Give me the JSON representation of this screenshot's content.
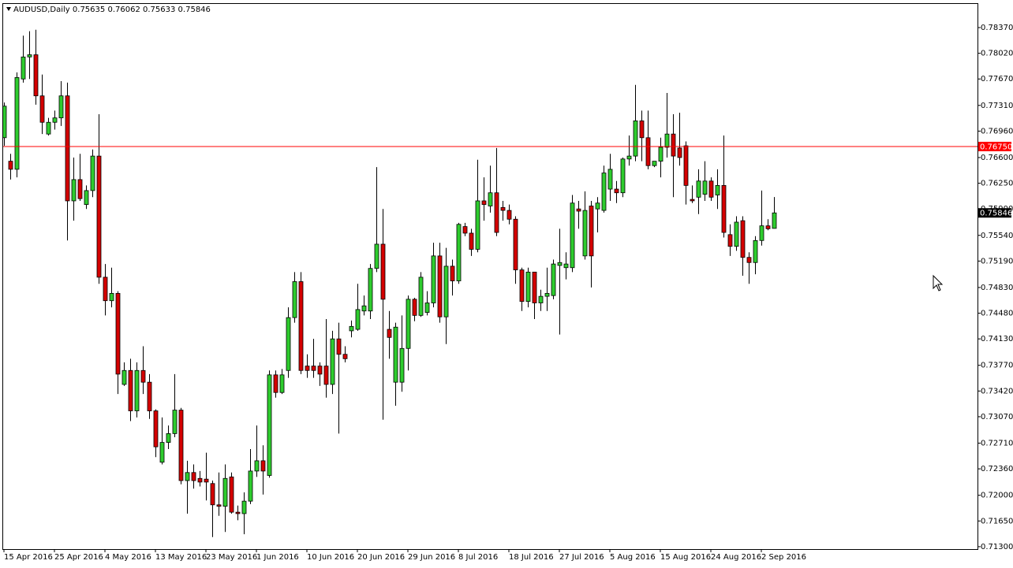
{
  "chart_data": {
    "type": "candlestick",
    "title": "AUDUSD,Daily",
    "up_color": "#2ecc2e",
    "down_color": "#d40000",
    "outline_color": "#000000",
    "categories": [
      "15 Apr 2016",
      null,
      null,
      null,
      null,
      null,
      null,
      null,
      "25 Apr 2016",
      null,
      null,
      null,
      null,
      null,
      null,
      null,
      "4 May 2016",
      null,
      null,
      null,
      null,
      null,
      null,
      null,
      "13 May 2016",
      null,
      null,
      null,
      null,
      null,
      null,
      null,
      "23 May 2016",
      null,
      null,
      null,
      null,
      null,
      null,
      null,
      "1 Jun 2016",
      null,
      null,
      null,
      null,
      null,
      null,
      null,
      "10 Jun 2016",
      null,
      null,
      null,
      null,
      null,
      null,
      null,
      "20 Jun 2016",
      null,
      null,
      null,
      null,
      null,
      null,
      null,
      "29 Jun 2016",
      null,
      null,
      null,
      null,
      null,
      null,
      null,
      "8 Jul 2016",
      null,
      null,
      null,
      null,
      null,
      null,
      null,
      "18 Jul 2016",
      null,
      null,
      null,
      null,
      null,
      null,
      null,
      "27 Jul 2016",
      null,
      null,
      null,
      null,
      null,
      null,
      null,
      "5 Aug 2016",
      null,
      null,
      null,
      null,
      null,
      null,
      null,
      "15 Aug 2016",
      null,
      null,
      null,
      null,
      null,
      null,
      null,
      "24 Aug 2016",
      null,
      null,
      null,
      null,
      null,
      null,
      null,
      "2 Sep 2016",
      null,
      null
    ],
    "open": [
      0.7687,
      0.7655,
      0.7644,
      0.7767,
      0.7797,
      0.78,
      0.7744,
      0.7692,
      0.7708,
      0.7714,
      0.7744,
      0.7601,
      0.763,
      0.7596,
      0.7615,
      0.7662,
      0.7497,
      0.7465,
      0.7475,
      0.7351,
      0.737,
      0.7315,
      0.737,
      0.7354,
      0.7315,
      0.7245,
      0.7272,
      0.7284,
      0.7316,
      0.722,
      0.7231,
      0.7223,
      0.7222,
      0.7216,
      0.7187,
      0.7185,
      0.7225,
      0.7177,
      0.7175,
      0.7192,
      0.7233,
      0.7247,
      0.7227,
      0.7364,
      0.734,
      0.737,
      0.7442,
      0.7491,
      0.7376,
      0.7376,
      0.7376,
      0.7376,
      0.7351,
      0.7413,
      0.7392,
      0.7424,
      0.7426,
      0.7451,
      0.7451,
      0.7509,
      0.7542,
      0.7426,
      0.7354,
      0.7354,
      0.74,
      0.7467,
      0.7445,
      0.7449,
      0.7462,
      0.7526,
      0.7443,
      0.7512,
      0.7492,
      0.7566,
      0.7557,
      0.7535,
      0.7601,
      0.7594,
      0.7612,
      0.7592,
      0.7588,
      0.7576,
      0.7507,
      0.7464,
      0.7504,
      0.7462,
      0.7471,
      0.7472,
      0.7513,
      0.751,
      0.751,
      0.759,
      0.7526,
      0.7594,
      0.759,
      0.7588,
      0.7617,
      0.7617,
      0.7612,
      0.7658,
      0.7662,
      0.771,
      0.7687,
      0.7649,
      0.7655,
      0.7674,
      0.7692,
      0.7673,
      0.7676,
      0.7603,
      0.7606,
      0.761,
      0.7628,
      0.7609,
      0.7622,
      0.7555,
      0.7539,
      0.7574,
      0.7524,
      0.7517,
      0.7547,
      0.7567,
      0.75635
    ],
    "high": [
      0.7735,
      0.7665,
      0.7776,
      0.7826,
      0.7832,
      0.7834,
      0.7773,
      0.7714,
      0.7724,
      0.7764,
      0.7762,
      0.766,
      0.7665,
      0.7622,
      0.7671,
      0.7719,
      0.7515,
      0.751,
      0.7478,
      0.7381,
      0.7386,
      0.7381,
      0.7403,
      0.7365,
      0.7317,
      0.7306,
      0.7295,
      0.7365,
      0.7319,
      0.7247,
      0.7242,
      0.7233,
      0.7258,
      0.722,
      0.7231,
      0.7242,
      0.7231,
      0.7186,
      0.7204,
      0.7263,
      0.7295,
      0.7268,
      0.737,
      0.737,
      0.7372,
      0.7456,
      0.7504,
      0.7504,
      0.7392,
      0.7413,
      0.7381,
      0.744,
      0.7424,
      0.7435,
      0.7403,
      0.7438,
      0.7488,
      0.7472,
      0.7515,
      0.7647,
      0.759,
      0.7451,
      0.7435,
      0.7445,
      0.7472,
      0.7469,
      0.7504,
      0.7478,
      0.7544,
      0.7544,
      0.7537,
      0.7521,
      0.7571,
      0.7571,
      0.7563,
      0.7657,
      0.7633,
      0.7649,
      0.7673,
      0.7601,
      0.7596,
      0.758,
      0.751,
      0.751,
      0.7504,
      0.748,
      0.751,
      0.7521,
      0.7563,
      0.7531,
      0.7609,
      0.7601,
      0.7614,
      0.7601,
      0.7606,
      0.7649,
      0.7665,
      0.7628,
      0.766,
      0.769,
      0.7759,
      0.7724,
      0.7724,
      0.7655,
      0.7687,
      0.7748,
      0.7719,
      0.7721,
      0.7682,
      0.7622,
      0.7644,
      0.7655,
      0.7633,
      0.7644,
      0.769,
      0.7569,
      0.758,
      0.758,
      0.7531,
      0.7553,
      0.7615,
      0.7576,
      0.76062
    ],
    "low": [
      0.7676,
      0.763,
      0.7633,
      0.7762,
      0.7767,
      0.7732,
      0.7692,
      0.769,
      0.7698,
      0.7703,
      0.7547,
      0.7574,
      0.7601,
      0.759,
      0.7606,
      0.7488,
      0.7445,
      0.7456,
      0.7338,
      0.7349,
      0.7301,
      0.7306,
      0.7338,
      0.7304,
      0.7252,
      0.7242,
      0.7263,
      0.7279,
      0.7215,
      0.7175,
      0.7209,
      0.7212,
      0.7193,
      0.7143,
      0.7172,
      0.715,
      0.7175,
      0.7166,
      0.7147,
      0.7188,
      0.7225,
      0.7201,
      0.7224,
      0.7333,
      0.7338,
      0.736,
      0.7435,
      0.7365,
      0.736,
      0.736,
      0.7349,
      0.7333,
      0.7338,
      0.7284,
      0.7381,
      0.7415,
      0.7424,
      0.7445,
      0.744,
      0.7504,
      0.7303,
      0.7386,
      0.7322,
      0.7341,
      0.737,
      0.7437,
      0.7443,
      0.7445,
      0.7456,
      0.7435,
      0.7406,
      0.7472,
      0.7488,
      0.7553,
      0.7526,
      0.7531,
      0.7574,
      0.7585,
      0.7553,
      0.7574,
      0.7569,
      0.7488,
      0.7451,
      0.7456,
      0.744,
      0.7451,
      0.7451,
      0.7467,
      0.7419,
      0.7494,
      0.7504,
      0.7563,
      0.7521,
      0.7483,
      0.7558,
      0.7585,
      0.7601,
      0.7598,
      0.7606,
      0.7649,
      0.7655,
      0.7655,
      0.7644,
      0.7647,
      0.7633,
      0.766,
      0.7606,
      0.7649,
      0.7596,
      0.7598,
      0.7583,
      0.7601,
      0.7601,
      0.759,
      0.7551,
      0.7526,
      0.7533,
      0.7499,
      0.7488,
      0.7501,
      0.754,
      0.7561,
      0.75633
    ],
    "close": [
      0.773,
      0.7644,
      0.7769,
      0.7797,
      0.78,
      0.7744,
      0.7708,
      0.7708,
      0.7714,
      0.7744,
      0.7601,
      0.763,
      0.7604,
      0.7615,
      0.7662,
      0.7497,
      0.7465,
      0.7475,
      0.7365,
      0.737,
      0.7315,
      0.737,
      0.7354,
      0.7315,
      0.7266,
      0.7272,
      0.7284,
      0.7316,
      0.722,
      0.7231,
      0.722,
      0.7218,
      0.7218,
      0.7187,
      0.7185,
      0.7223,
      0.7177,
      0.7175,
      0.7192,
      0.7233,
      0.7247,
      0.7233,
      0.7364,
      0.734,
      0.7364,
      0.7442,
      0.7491,
      0.737,
      0.737,
      0.737,
      0.7365,
      0.7351,
      0.7413,
      0.7392,
      0.7386,
      0.743,
      0.7453,
      0.7458,
      0.7509,
      0.7542,
      0.7467,
      0.7415,
      0.7429,
      0.74,
      0.7467,
      0.7445,
      0.7497,
      0.7462,
      0.7526,
      0.7443,
      0.7512,
      0.7492,
      0.7569,
      0.7557,
      0.7535,
      0.7601,
      0.7596,
      0.7612,
      0.7558,
      0.7588,
      0.7576,
      0.7507,
      0.7464,
      0.7504,
      0.7462,
      0.7471,
      0.7475,
      0.7515,
      0.7517,
      0.7515,
      0.7598,
      0.7587,
      0.7588,
      0.7526,
      0.7598,
      0.7639,
      0.7644,
      0.7612,
      0.7658,
      0.7662,
      0.771,
      0.7687,
      0.7649,
      0.7655,
      0.7674,
      0.7692,
      0.7662,
      0.766,
      0.7622,
      0.7601,
      0.7628,
      0.7628,
      0.7606,
      0.7622,
      0.7558,
      0.7539,
      0.7572,
      0.7524,
      0.7517,
      0.7547,
      0.7567,
      0.7563,
      0.75846
    ],
    "ylim": [
      0.71267,
      0.78692
    ],
    "yticks": [
      {
        "value": 0.7837,
        "label": "0.78370"
      },
      {
        "value": 0.7802,
        "label": "0.78020"
      },
      {
        "value": 0.7767,
        "label": "0.77670"
      },
      {
        "value": 0.7731,
        "label": "0.77310"
      },
      {
        "value": 0.7696,
        "label": "0.76960"
      },
      {
        "value": 0.766,
        "label": "0.76600"
      },
      {
        "value": 0.7625,
        "label": "0.76250"
      },
      {
        "value": 0.759,
        "label": "0.75900"
      },
      {
        "value": 0.7554,
        "label": "0.75540"
      },
      {
        "value": 0.7519,
        "label": "0.75190"
      },
      {
        "value": 0.7483,
        "label": "0.74830"
      },
      {
        "value": 0.7448,
        "label": "0.74480"
      },
      {
        "value": 0.7413,
        "label": "0.74130"
      },
      {
        "value": 0.7377,
        "label": "0.73770"
      },
      {
        "value": 0.7342,
        "label": "0.73420"
      },
      {
        "value": 0.7307,
        "label": "0.73070"
      },
      {
        "value": 0.7271,
        "label": "0.72710"
      },
      {
        "value": 0.7236,
        "label": "0.72360"
      },
      {
        "value": 0.72,
        "label": "0.72000"
      },
      {
        "value": 0.7165,
        "label": "0.71650"
      },
      {
        "value": 0.713,
        "label": "0.71300"
      }
    ],
    "hline": {
      "value": 0.7675,
      "label": "0.76750",
      "color": "#ff0000"
    },
    "grid": false
  }
}
